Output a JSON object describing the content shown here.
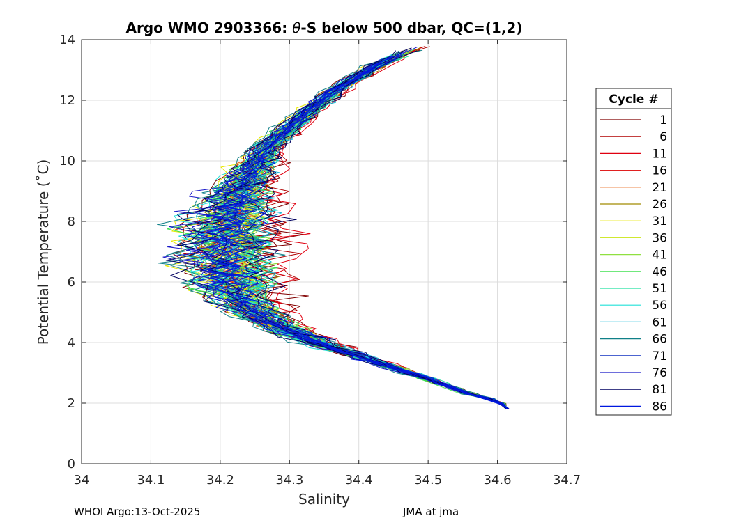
{
  "chart_data": {
    "type": "line",
    "title_prefix": "Argo WMO 2903366: ",
    "title_theta": "θ",
    "title_suffix": "-S below 500 dbar,  QC=(1,2)",
    "xlabel": "Salinity",
    "ylabel": "Potential Temperature (˚C)",
    "xlim": [
      34,
      34.7
    ],
    "ylim": [
      0,
      14
    ],
    "x_ticks": [
      "34",
      "34.1",
      "34.2",
      "34.3",
      "34.4",
      "34.5",
      "34.6",
      "34.7"
    ],
    "y_ticks": [
      "0",
      "2",
      "4",
      "6",
      "8",
      "10",
      "12",
      "14"
    ],
    "grid": true,
    "legend": {
      "title": "Cycle #",
      "placement": "right",
      "entries": [
        "1",
        "6",
        "11",
        "16",
        "21",
        "26",
        "31",
        "36",
        "41",
        "46",
        "51",
        "56",
        "61",
        "66",
        "71",
        "76",
        "81",
        "86"
      ],
      "colors": [
        "#800000",
        "#B00000",
        "#E00010",
        "#E02020",
        "#E86010",
        "#A08A00",
        "#E8E800",
        "#D0E830",
        "#90E040",
        "#40E050",
        "#20E0A0",
        "#20E0D8",
        "#10B8D8",
        "#108088",
        "#1030C0",
        "#1818C8",
        "#000060",
        "#0018E0"
      ]
    },
    "series_shape": {
      "description": "Approximate median theta-S curve for each cycle (salinity, potential temperature)",
      "points": [
        [
          34.49,
          13.8
        ],
        [
          34.43,
          13.2
        ],
        [
          34.37,
          12.4
        ],
        [
          34.32,
          11.5
        ],
        [
          34.27,
          10.5
        ],
        [
          34.24,
          9.5
        ],
        [
          34.22,
          8.5
        ],
        [
          34.21,
          7.5
        ],
        [
          34.21,
          6.6
        ],
        [
          34.22,
          5.8
        ],
        [
          34.24,
          5.2
        ],
        [
          34.28,
          4.6
        ],
        [
          34.34,
          4.0
        ],
        [
          34.42,
          3.4
        ],
        [
          34.5,
          2.8
        ],
        [
          34.56,
          2.3
        ],
        [
          34.61,
          1.85
        ]
      ],
      "deep_end": [
        34.615,
        1.82
      ]
    }
  },
  "footer": {
    "left": "WHOI Argo:13-Oct-2025",
    "right": "JMA at jma"
  }
}
